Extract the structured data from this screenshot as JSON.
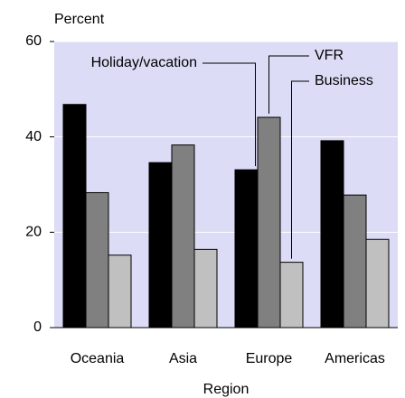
{
  "chart_data": {
    "type": "bar",
    "ylabel": "Percent",
    "xlabel": "Region",
    "categories": [
      "Oceania",
      "Asia",
      "Europe",
      "Americas"
    ],
    "series": [
      {
        "name": "Holiday/vacation",
        "color": "#000000",
        "values": [
          46.8,
          34.6,
          33.1,
          39.2
        ]
      },
      {
        "name": "VFR",
        "color": "#808080",
        "values": [
          28.3,
          38.3,
          44.1,
          27.8
        ]
      },
      {
        "name": "Business",
        "color": "#c0c0c0",
        "values": [
          15.2,
          16.4,
          13.7,
          18.5
        ]
      }
    ],
    "ylim": [
      0,
      60
    ],
    "yticks": [
      0,
      20,
      40,
      60
    ],
    "grid": true,
    "background": "#dcdcf6"
  }
}
